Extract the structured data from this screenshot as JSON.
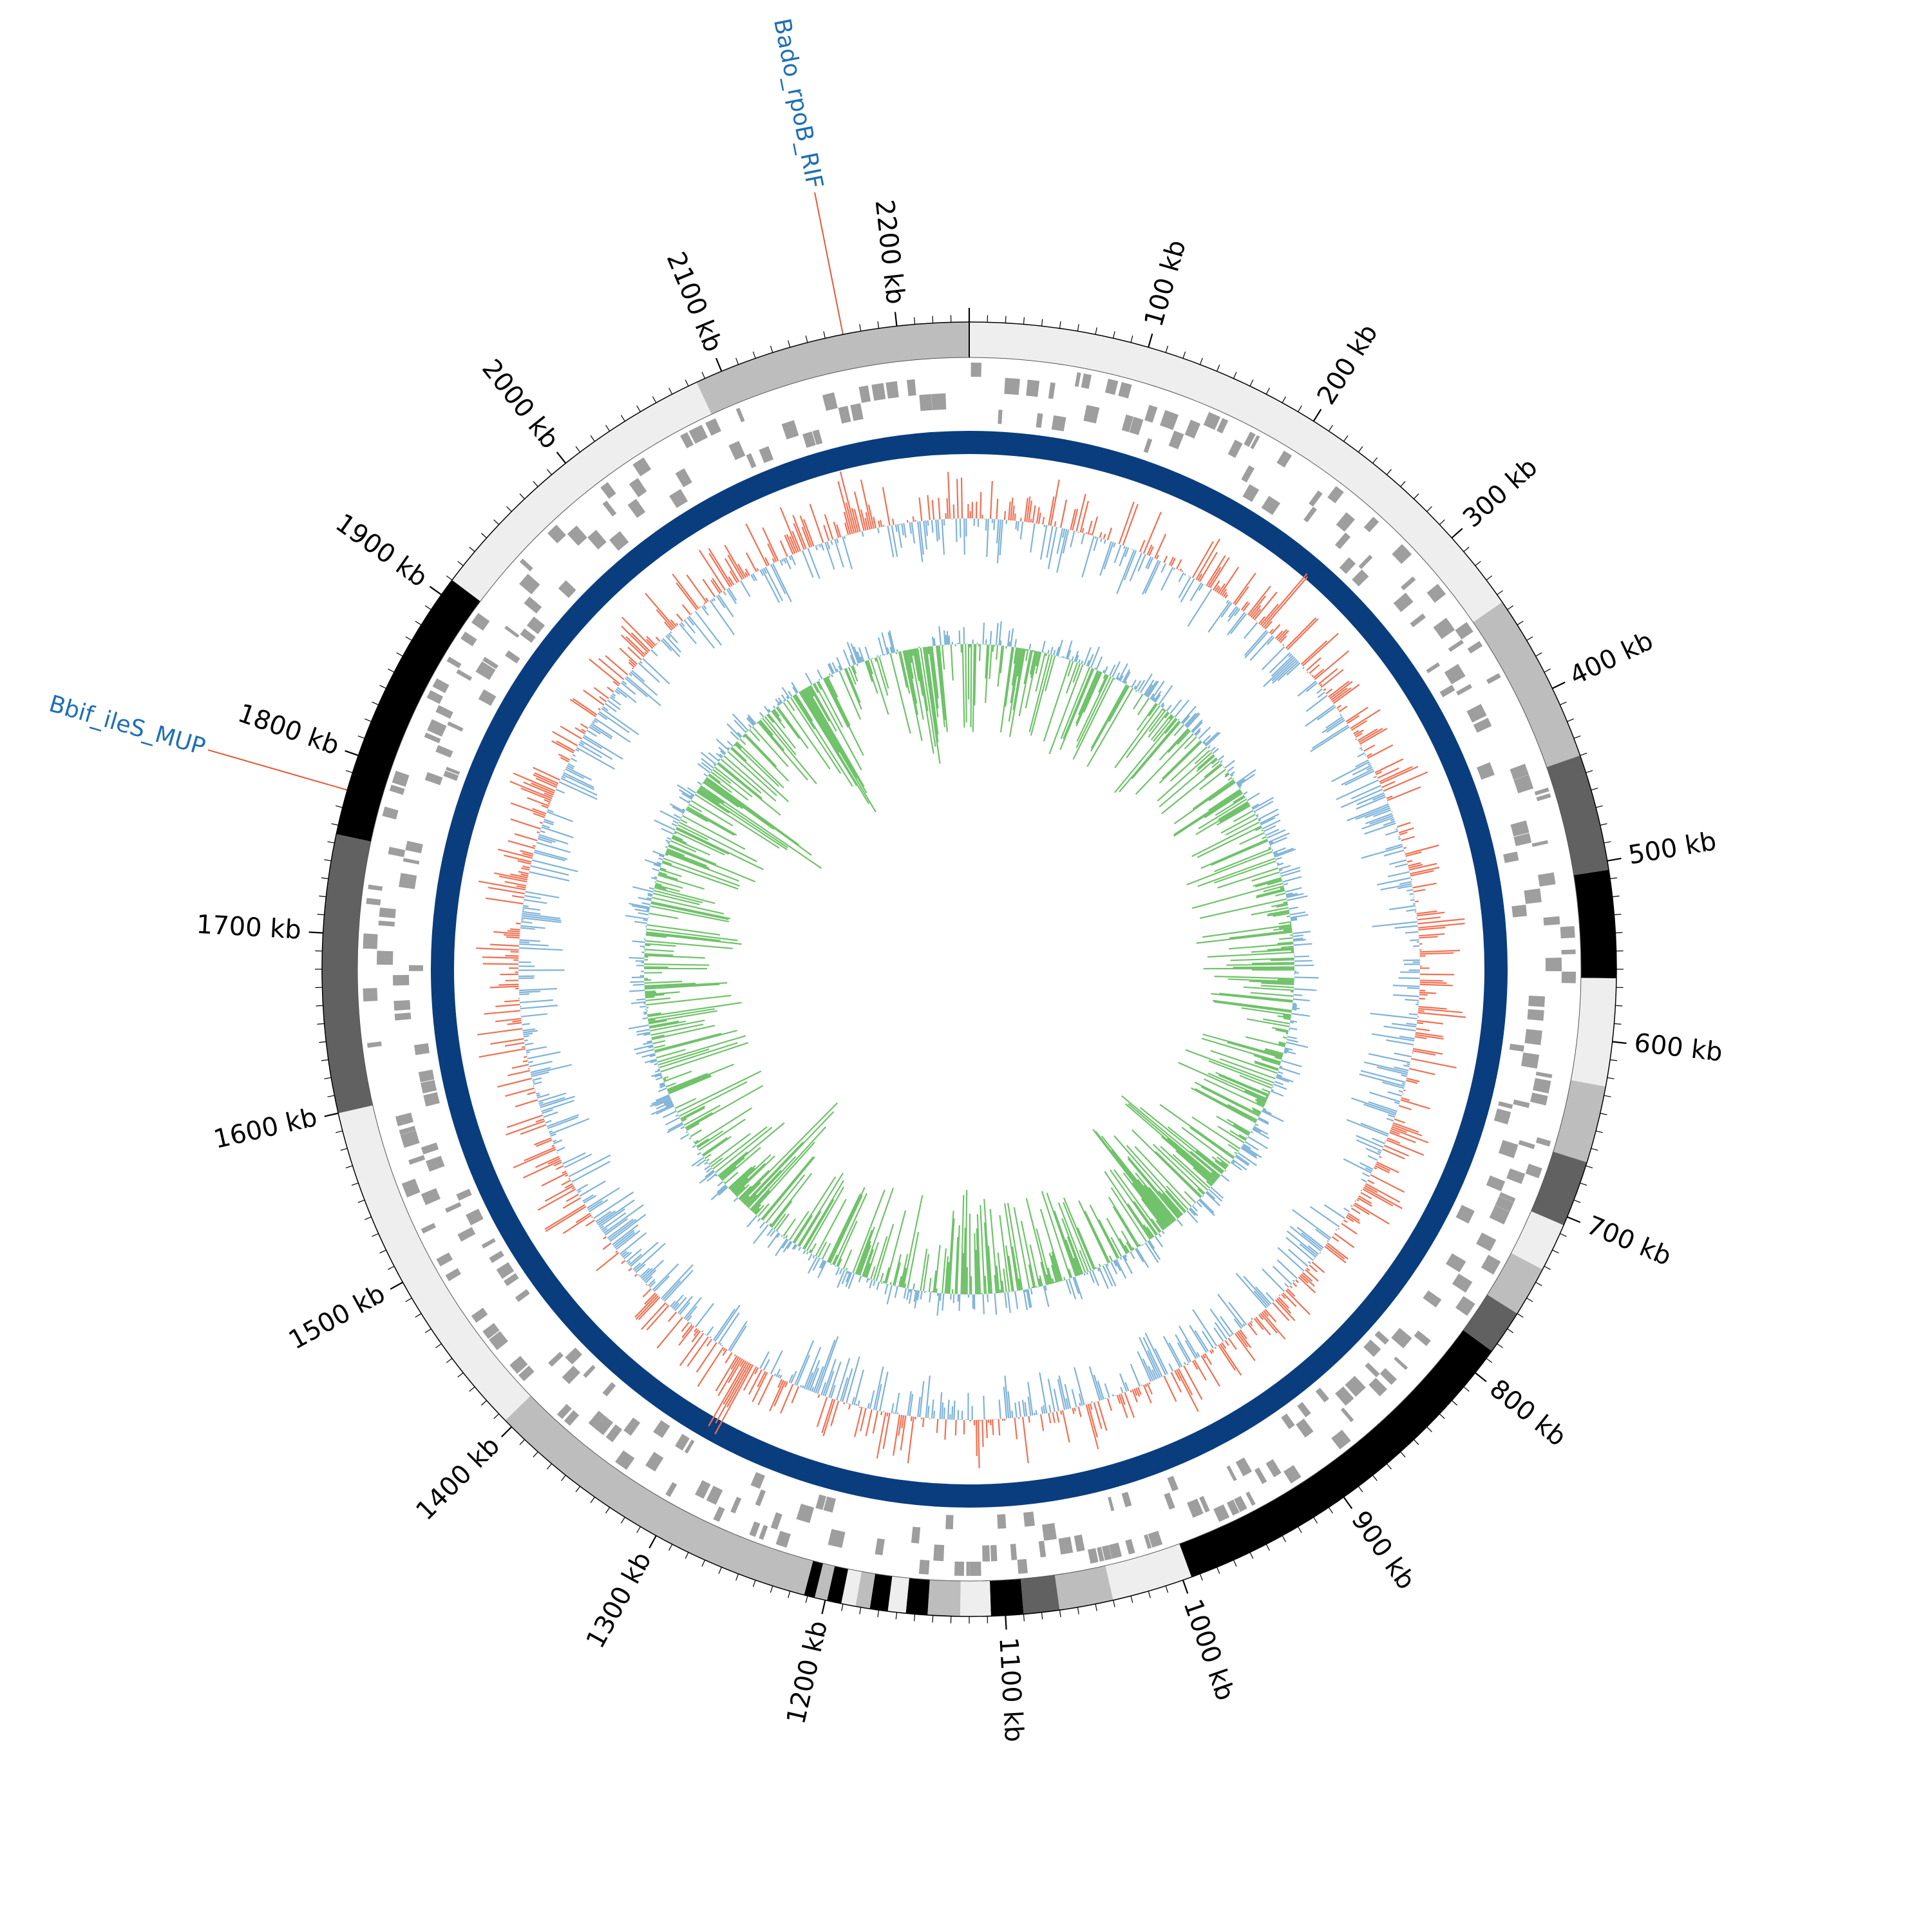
{
  "genome": {
    "length_kb": 2240,
    "tick_labels": [
      {
        "kb": 100,
        "label": "100 kb"
      },
      {
        "kb": 200,
        "label": "200 kb"
      },
      {
        "kb": 300,
        "label": "300 kb"
      },
      {
        "kb": 400,
        "label": "400 kb"
      },
      {
        "kb": 500,
        "label": "500 kb"
      },
      {
        "kb": 600,
        "label": "600 kb"
      },
      {
        "kb": 700,
        "label": "700 kb"
      },
      {
        "kb": 800,
        "label": "800 kb"
      },
      {
        "kb": 900,
        "label": "900 kb"
      },
      {
        "kb": 1000,
        "label": "1000 kb"
      },
      {
        "kb": 1100,
        "label": "1100 kb"
      },
      {
        "kb": 1200,
        "label": "1200 kb"
      },
      {
        "kb": 1300,
        "label": "1300 kb"
      },
      {
        "kb": 1400,
        "label": "1400 kb"
      },
      {
        "kb": 1500,
        "label": "1500 kb"
      },
      {
        "kb": 1600,
        "label": "1600 kb"
      },
      {
        "kb": 1700,
        "label": "1700 kb"
      },
      {
        "kb": 1800,
        "label": "1800 kb"
      },
      {
        "kb": 1900,
        "label": "1900 kb"
      },
      {
        "kb": 2000,
        "label": "2000 kb"
      },
      {
        "kb": 2100,
        "label": "2100 kb"
      },
      {
        "kb": 2200,
        "label": "2200 kb"
      }
    ]
  },
  "contigs": [
    {
      "start": 0,
      "end": 345,
      "shade": "#eeeeee"
    },
    {
      "start": 345,
      "end": 440,
      "shade": "#bdbdbd"
    },
    {
      "start": 440,
      "end": 505,
      "shade": "#616161"
    },
    {
      "start": 505,
      "end": 565,
      "shade": "#000000"
    },
    {
      "start": 565,
      "end": 625,
      "shade": "#eeeeee"
    },
    {
      "start": 625,
      "end": 668,
      "shade": "#bdbdbd"
    },
    {
      "start": 668,
      "end": 705,
      "shade": "#616161"
    },
    {
      "start": 705,
      "end": 732,
      "shade": "#eeeeee"
    },
    {
      "start": 732,
      "end": 760,
      "shade": "#bdbdbd"
    },
    {
      "start": 760,
      "end": 785,
      "shade": "#616161"
    },
    {
      "start": 785,
      "end": 995,
      "shade": "#000000"
    },
    {
      "start": 995,
      "end": 1040,
      "shade": "#eeeeee"
    },
    {
      "start": 1040,
      "end": 1070,
      "shade": "#bdbdbd"
    },
    {
      "start": 1070,
      "end": 1090,
      "shade": "#616161"
    },
    {
      "start": 1090,
      "end": 1108,
      "shade": "#000000"
    },
    {
      "start": 1108,
      "end": 1125,
      "shade": "#eeeeee"
    },
    {
      "start": 1125,
      "end": 1143,
      "shade": "#bdbdbd"
    },
    {
      "start": 1143,
      "end": 1155,
      "shade": "#000000"
    },
    {
      "start": 1155,
      "end": 1165,
      "shade": "#eeeeee"
    },
    {
      "start": 1165,
      "end": 1175,
      "shade": "#000000"
    },
    {
      "start": 1175,
      "end": 1183,
      "shade": "#bdbdbd"
    },
    {
      "start": 1183,
      "end": 1191,
      "shade": "#eeeeee"
    },
    {
      "start": 1191,
      "end": 1199,
      "shade": "#000000"
    },
    {
      "start": 1199,
      "end": 1206,
      "shade": "#bdbdbd"
    },
    {
      "start": 1206,
      "end": 1212,
      "shade": "#000000"
    },
    {
      "start": 1212,
      "end": 1405,
      "shade": "#bdbdbd"
    },
    {
      "start": 1405,
      "end": 1600,
      "shade": "#eeeeee"
    },
    {
      "start": 1600,
      "end": 1755,
      "shade": "#616161"
    },
    {
      "start": 1755,
      "end": 1910,
      "shade": "#000000"
    },
    {
      "start": 1910,
      "end": 2085,
      "shade": "#eeeeee"
    },
    {
      "start": 2085,
      "end": 2240,
      "shade": "#bdbdbd"
    }
  ],
  "markers": [
    {
      "kb": 2170,
      "label": "Bado_rpoB_RIF",
      "color": "#1f6fb4"
    },
    {
      "kb": 1780,
      "label": "Bbif_ileS_MUP",
      "color": "#1f6fb4"
    }
  ],
  "colors": {
    "outer_ring_line": "#000000",
    "gene_track": "#9e9e9e",
    "blast_ring": "#0a3d7e",
    "gc_content_positive": "#f07052",
    "gc_content_negative": "#7fb3d8",
    "gc_skew_positive": "#70c26b",
    "gc_skew_negative": "#7fb3d8",
    "marker_line": "#e05a3a"
  }
}
